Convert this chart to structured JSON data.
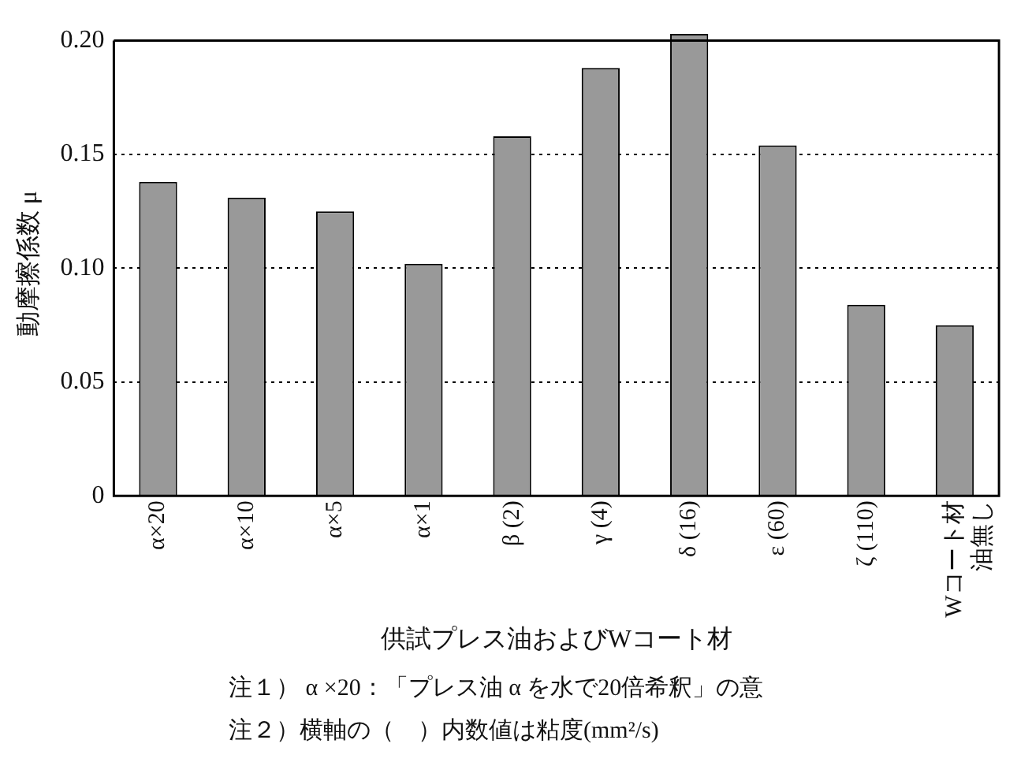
{
  "chart_data": {
    "type": "bar",
    "xlabel": "供試プレス油およびWコート材",
    "ylabel": "動摩擦係数 μ",
    "categories": [
      "α×20",
      "α×10",
      "α×5",
      "α×1",
      "β (2)",
      "γ (4)",
      "δ (16)",
      "ε (60)",
      "ζ (110)",
      "Wコート材油無し"
    ],
    "values": [
      0.138,
      0.131,
      0.125,
      0.102,
      0.158,
      0.188,
      0.203,
      0.154,
      0.084,
      0.075
    ],
    "color": "#999999",
    "ylim": [
      0,
      0.204
    ],
    "yticks": [
      0,
      0.05,
      {
        "value": 0.1,
        "label": "0.10"
      },
      0.15,
      {
        "value": 0.2,
        "label": "0.20"
      }
    ],
    "grid": "y",
    "legend": false,
    "annotations": [
      "注１） α ×20：「プレス油 α を水で20倍希釈」の意",
      "注２）横軸の（　）内数値は粘度(mm²/s)"
    ]
  }
}
